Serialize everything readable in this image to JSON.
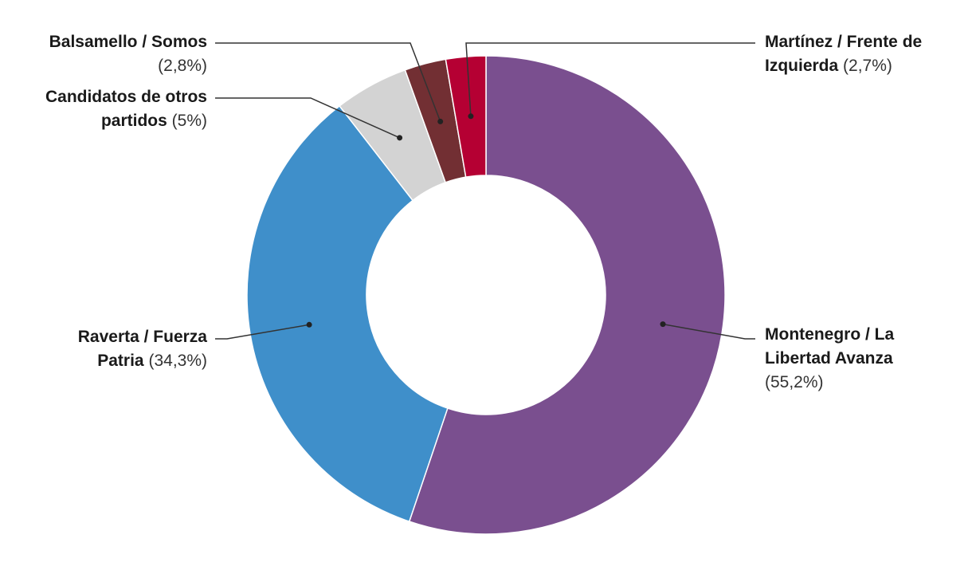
{
  "chart_data": {
    "type": "pie",
    "variant": "donut",
    "title": "",
    "slices": [
      {
        "label_line1": "Montenegro / La",
        "label_line2": "Libertad Avanza",
        "percent_text": "(55,2%)",
        "value": 55.2,
        "color": "#7a4f8f"
      },
      {
        "label_line1": "Raverta / Fuerza",
        "label_line2": "Patria",
        "percent_text": "(34,3%)",
        "value": 34.3,
        "color": "#3f8fca"
      },
      {
        "label_line1": "Candidatos de otros",
        "label_line2": "partidos",
        "percent_text": "(5%)",
        "value": 5.0,
        "color": "#d3d3d3"
      },
      {
        "label_line1": "Balsamello / Somos",
        "label_line2": "",
        "percent_text": "(2,8%)",
        "value": 2.8,
        "color": "#722f33"
      },
      {
        "label_line1": "Martínez / Frente de",
        "label_line2": "Izquierda",
        "percent_text": "(2,7%)",
        "value": 2.7,
        "color": "#b50033"
      }
    ],
    "legend": "none",
    "start_angle": "12 o'clock, clockwise"
  }
}
